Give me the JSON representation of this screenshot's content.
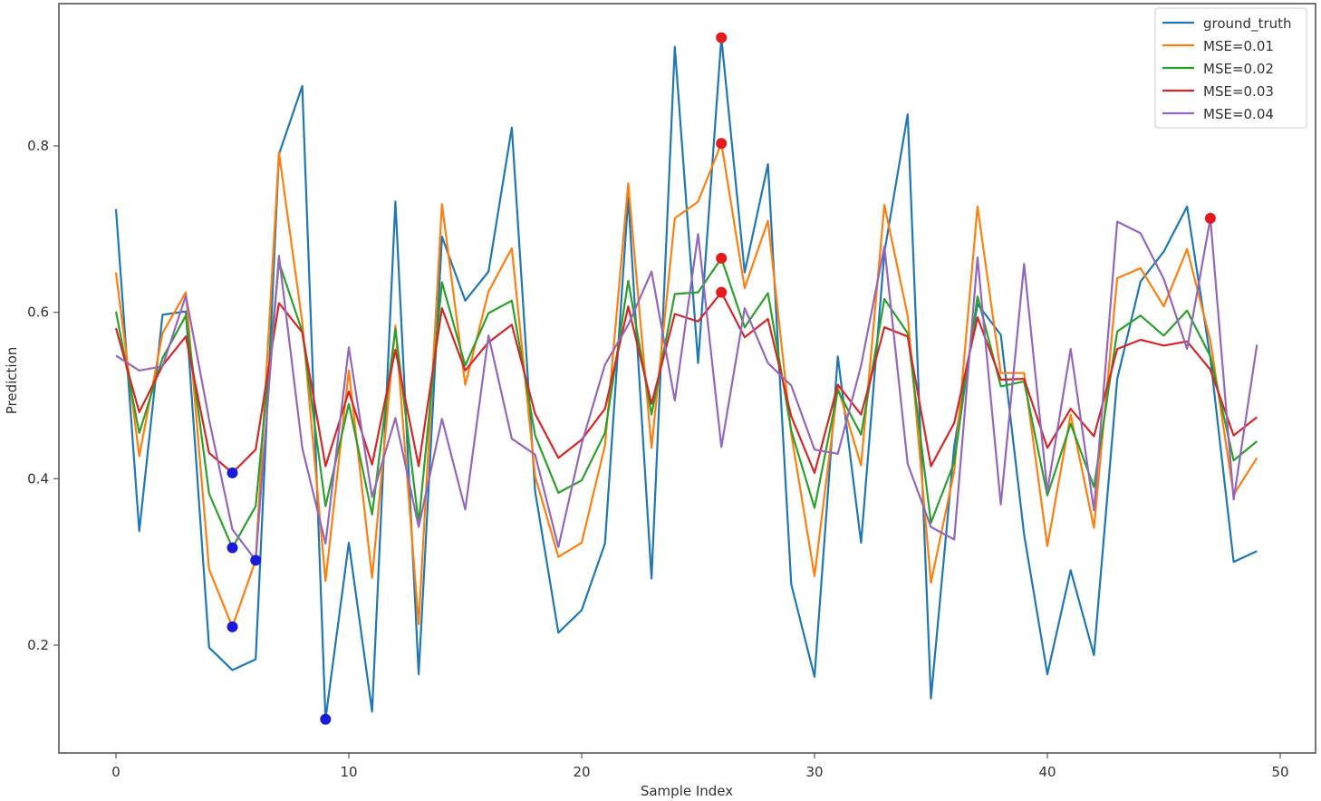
{
  "chart_data": {
    "type": "line",
    "title": "",
    "xlabel": "Sample Index",
    "ylabel": "Prediction",
    "xlim": [
      -2.5,
      51.5
    ],
    "ylim": [
      0.077,
      0.978
    ],
    "xticks": [
      0,
      10,
      20,
      30,
      40,
      50
    ],
    "yticks": [
      0.2,
      0.4,
      0.6,
      0.8
    ],
    "xtick_labels": [
      "0",
      "10",
      "20",
      "30",
      "40",
      "50"
    ],
    "ytick_labels": [
      "0.2",
      "0.4",
      "0.6",
      "0.8"
    ],
    "grid": false,
    "legend_position": "upper right",
    "x": [
      0,
      1,
      2,
      3,
      4,
      5,
      6,
      7,
      8,
      9,
      10,
      11,
      12,
      13,
      14,
      15,
      16,
      17,
      18,
      19,
      20,
      21,
      22,
      23,
      24,
      25,
      26,
      27,
      28,
      29,
      30,
      31,
      32,
      33,
      34,
      35,
      36,
      37,
      38,
      39,
      40,
      41,
      42,
      43,
      44,
      45,
      46,
      47,
      48,
      49
    ],
    "series": [
      {
        "name": "ground_truth",
        "color": "#1f77b4",
        "values": [
          0.724,
          0.337,
          0.597,
          0.601,
          0.197,
          0.17,
          0.183,
          0.79,
          0.872,
          0.111,
          0.323,
          0.12,
          0.733,
          0.165,
          0.691,
          0.614,
          0.649,
          0.822,
          0.385,
          0.215,
          0.242,
          0.322,
          0.738,
          0.28,
          0.919,
          0.539,
          0.93,
          0.648,
          0.778,
          0.273,
          0.162,
          0.547,
          0.323,
          0.672,
          0.838,
          0.136,
          0.439,
          0.61,
          0.573,
          0.333,
          0.165,
          0.29,
          0.188,
          0.52,
          0.637,
          0.673,
          0.727,
          0.545,
          0.3,
          0.313
        ]
      },
      {
        "name": "MSE=0.01",
        "color": "#ff7f0e",
        "values": [
          0.648,
          0.427,
          0.575,
          0.624,
          0.291,
          0.222,
          0.302,
          0.792,
          0.588,
          0.277,
          0.53,
          0.281,
          0.584,
          0.225,
          0.73,
          0.513,
          0.625,
          0.677,
          0.403,
          0.306,
          0.323,
          0.44,
          0.755,
          0.437,
          0.713,
          0.733,
          0.803,
          0.629,
          0.71,
          0.454,
          0.283,
          0.51,
          0.416,
          0.729,
          0.596,
          0.275,
          0.409,
          0.727,
          0.527,
          0.527,
          0.319,
          0.477,
          0.341,
          0.641,
          0.653,
          0.607,
          0.676,
          0.566,
          0.381,
          0.425
        ]
      },
      {
        "name": "MSE=0.02",
        "color": "#2ca02c",
        "values": [
          0.601,
          0.455,
          0.545,
          0.596,
          0.382,
          0.317,
          0.367,
          0.66,
          0.577,
          0.367,
          0.49,
          0.357,
          0.58,
          0.346,
          0.636,
          0.536,
          0.599,
          0.614,
          0.452,
          0.383,
          0.398,
          0.455,
          0.638,
          0.477,
          0.622,
          0.624,
          0.665,
          0.582,
          0.623,
          0.458,
          0.365,
          0.506,
          0.453,
          0.616,
          0.575,
          0.347,
          0.42,
          0.619,
          0.511,
          0.517,
          0.38,
          0.466,
          0.39,
          0.577,
          0.596,
          0.572,
          0.602,
          0.547,
          0.422,
          0.445
        ]
      },
      {
        "name": "MSE=0.03",
        "color": "#d62728",
        "values": [
          0.581,
          0.48,
          0.536,
          0.571,
          0.431,
          0.407,
          0.435,
          0.611,
          0.576,
          0.415,
          0.505,
          0.417,
          0.555,
          0.415,
          0.605,
          0.53,
          0.564,
          0.585,
          0.478,
          0.425,
          0.447,
          0.484,
          0.607,
          0.49,
          0.598,
          0.589,
          0.624,
          0.57,
          0.592,
          0.475,
          0.407,
          0.513,
          0.477,
          0.582,
          0.571,
          0.415,
          0.467,
          0.594,
          0.519,
          0.52,
          0.437,
          0.484,
          0.451,
          0.556,
          0.567,
          0.56,
          0.565,
          0.531,
          0.452,
          0.474
        ]
      },
      {
        "name": "MSE=0.04",
        "color": "#9467bd",
        "values": [
          0.548,
          0.53,
          0.535,
          0.62,
          0.471,
          0.339,
          0.302,
          0.668,
          0.437,
          0.322,
          0.558,
          0.378,
          0.473,
          0.342,
          0.472,
          0.363,
          0.572,
          0.448,
          0.429,
          0.318,
          0.442,
          0.537,
          0.585,
          0.649,
          0.494,
          0.694,
          0.438,
          0.605,
          0.539,
          0.512,
          0.435,
          0.43,
          0.536,
          0.679,
          0.418,
          0.342,
          0.327,
          0.666,
          0.369,
          0.658,
          0.385,
          0.556,
          0.362,
          0.709,
          0.695,
          0.64,
          0.556,
          0.713,
          0.375,
          0.561
        ]
      }
    ],
    "annotations": {
      "min_markers": {
        "color": "#1a1adb",
        "points": [
          {
            "series": "MSE=0.03",
            "x": 5,
            "y": 0.407
          },
          {
            "series": "MSE=0.02",
            "x": 5,
            "y": 0.317
          },
          {
            "series": "MSE=0.01",
            "x": 5,
            "y": 0.222
          },
          {
            "series": "MSE=0.04",
            "x": 6,
            "y": 0.302
          },
          {
            "series": "ground_truth",
            "x": 9,
            "y": 0.111
          }
        ]
      },
      "max_markers": {
        "color": "#e41a1c",
        "points": [
          {
            "series": "ground_truth",
            "x": 26,
            "y": 0.93
          },
          {
            "series": "MSE=0.01",
            "x": 26,
            "y": 0.803
          },
          {
            "series": "MSE=0.02",
            "x": 26,
            "y": 0.665
          },
          {
            "series": "MSE=0.03",
            "x": 26,
            "y": 0.624
          },
          {
            "series": "MSE=0.04",
            "x": 47,
            "y": 0.713
          }
        ]
      }
    }
  },
  "legend": {
    "items": [
      {
        "label": "ground_truth",
        "color": "#1f77b4"
      },
      {
        "label": "MSE=0.01",
        "color": "#ff7f0e"
      },
      {
        "label": "MSE=0.02",
        "color": "#2ca02c"
      },
      {
        "label": "MSE=0.03",
        "color": "#d62728"
      },
      {
        "label": "MSE=0.04",
        "color": "#9467bd"
      }
    ]
  },
  "axes": {
    "xlabel": "Sample Index",
    "ylabel": "Prediction"
  }
}
